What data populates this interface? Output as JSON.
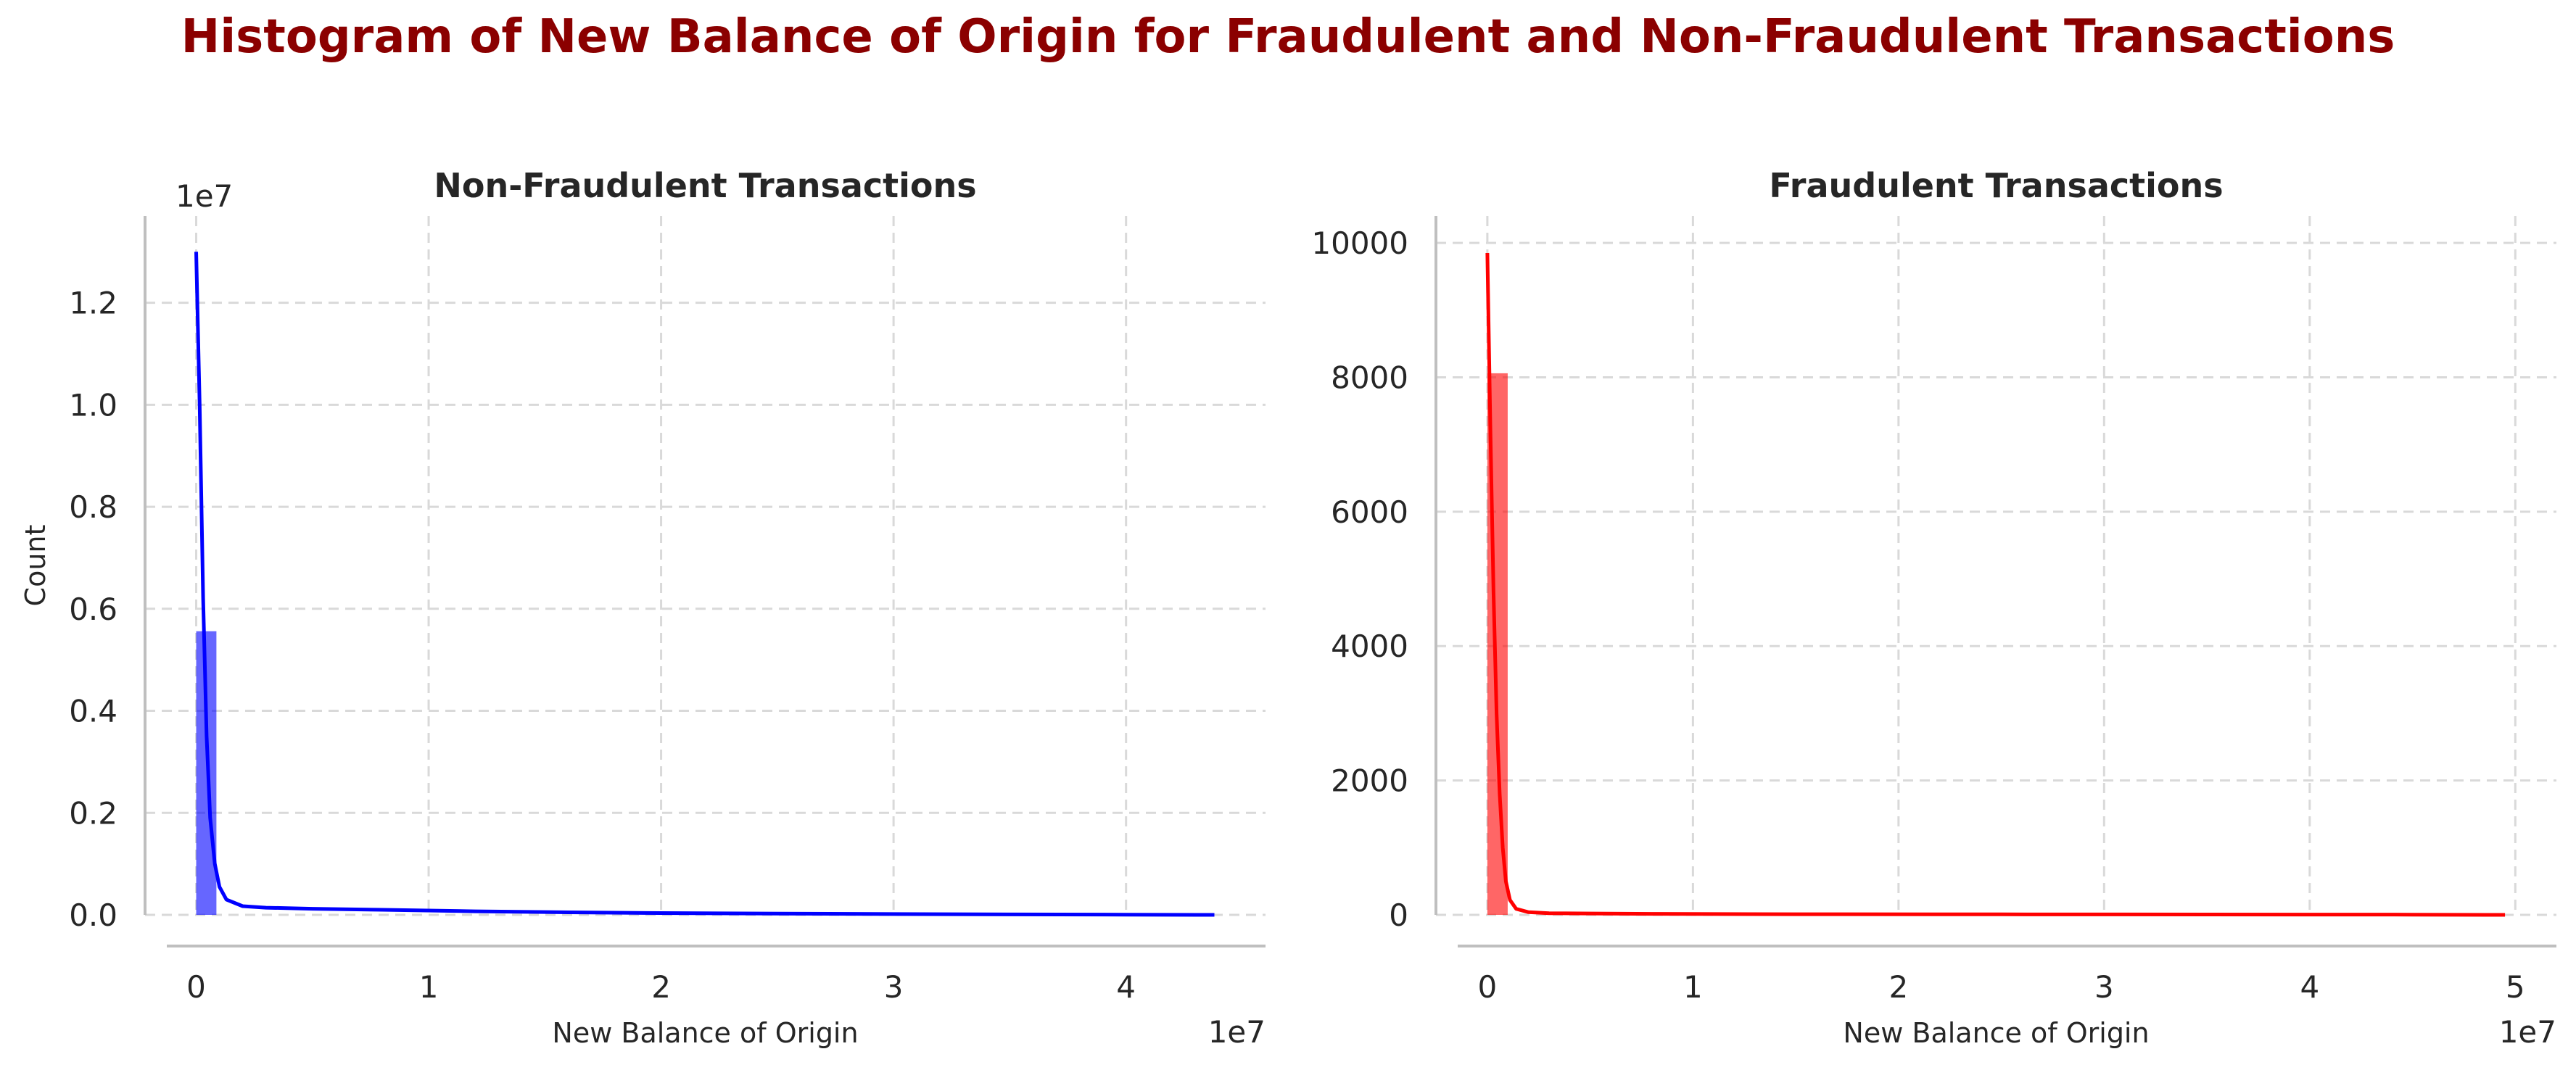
{
  "figure": {
    "title": "Histogram of New Balance of Origin for Fraudulent and Non-Fraudulent Transactions",
    "title_color": "#8b0000"
  },
  "chart_data": [
    {
      "type": "bar",
      "title": "Non-Fraudulent Transactions",
      "xlabel": "New Balance of Origin",
      "ylabel": "Count",
      "xlim": [
        -2200000,
        46000000
      ],
      "ylim": [
        0,
        13700000
      ],
      "xticks": [
        0,
        10000000,
        20000000,
        30000000,
        40000000
      ],
      "xtick_labels": [
        "0",
        "1",
        "2",
        "3",
        "4"
      ],
      "x_offset_label": "1e7",
      "yticks": [
        0,
        2000000,
        4000000,
        6000000,
        8000000,
        10000000,
        12000000
      ],
      "ytick_labels": [
        "0.0",
        "0.2",
        "0.4",
        "0.6",
        "0.8",
        "1.0",
        "1.2"
      ],
      "y_offset_label": "1e7",
      "grid": true,
      "bar_color": "#0000ff",
      "line_color": "#0000ff",
      "bins": [
        {
          "start": 0,
          "end": 870000,
          "count": 5560000
        }
      ],
      "kde": {
        "x": [
          0,
          150000,
          300000,
          450000,
          600000,
          800000,
          1000000,
          1300000,
          2000000,
          3000000,
          5000000,
          8000000,
          12000000,
          16000000,
          20000000,
          25000000,
          30000000,
          35000000,
          40000000,
          43800000
        ],
        "y": [
          13000000,
          10000000,
          6200000,
          3500000,
          1900000,
          1000000,
          550000,
          300000,
          170000,
          140000,
          120000,
          100000,
          70000,
          50000,
          35000,
          25000,
          15000,
          8000,
          4000,
          0
        ]
      }
    },
    {
      "type": "bar",
      "title": "Fraudulent Transactions",
      "xlabel": "New Balance of Origin",
      "ylabel": "",
      "xlim": [
        -2500000,
        52000000
      ],
      "ylim": [
        0,
        10400
      ],
      "xticks": [
        0,
        10000000,
        20000000,
        30000000,
        40000000,
        50000000
      ],
      "xtick_labels": [
        "0",
        "1",
        "2",
        "3",
        "4",
        "5"
      ],
      "x_offset_label": "1e7",
      "yticks": [
        0,
        2000,
        4000,
        6000,
        8000,
        10000
      ],
      "ytick_labels": [
        "0",
        "2000",
        "4000",
        "6000",
        "8000",
        "10000"
      ],
      "y_offset_label": "",
      "grid": true,
      "bar_color": "#ff0000",
      "line_color": "#ff0000",
      "bins": [
        {
          "start": 0,
          "end": 990000,
          "count": 8060
        }
      ],
      "kde": {
        "x": [
          0,
          150000,
          300000,
          450000,
          600000,
          750000,
          900000,
          1100000,
          1400000,
          2000000,
          3000000,
          5000000,
          8000000,
          15000000,
          25000000,
          35000000,
          45000000,
          49500000
        ],
        "y": [
          9850,
          7200,
          4800,
          3000,
          1800,
          1000,
          500,
          220,
          90,
          40,
          25,
          20,
          15,
          10,
          8,
          5,
          3,
          0
        ]
      }
    }
  ]
}
